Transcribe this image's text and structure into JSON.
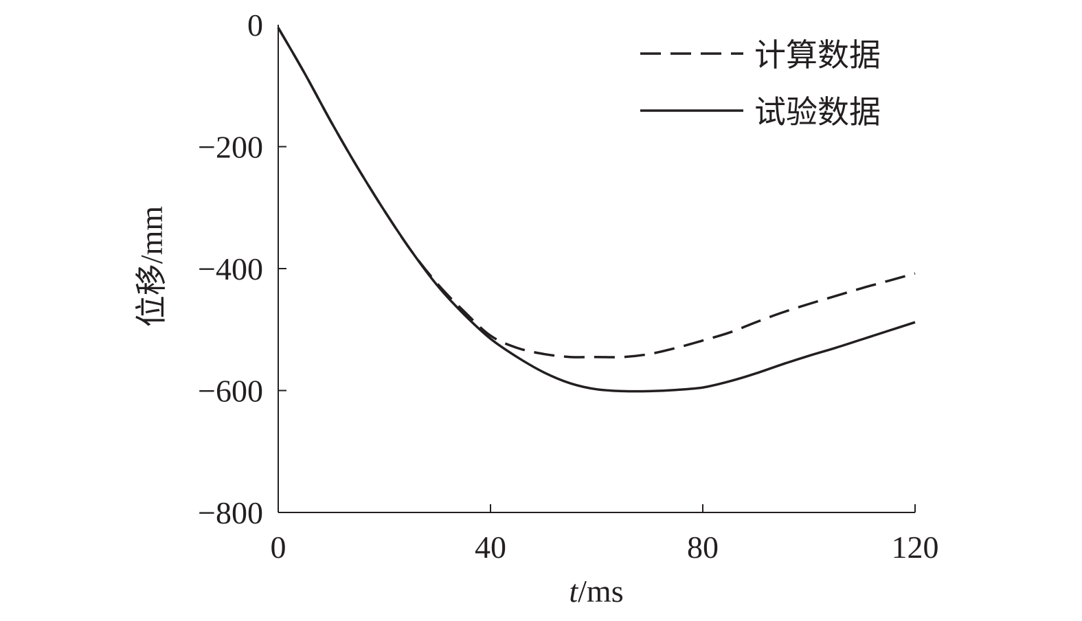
{
  "chart_data": {
    "type": "line",
    "xlabel_italic": "t",
    "xlabel_unit": "/ms",
    "ylabel": "位移/mm",
    "xlim": [
      0,
      120
    ],
    "ylim": [
      -800,
      0
    ],
    "xticks": [
      0,
      40,
      80,
      120
    ],
    "yticks": [
      0,
      -200,
      -400,
      -600,
      -800
    ],
    "x_tick_labels": [
      "0",
      "40",
      "80",
      "120"
    ],
    "y_tick_labels": [
      "0",
      "−200",
      "−400",
      "−600",
      "−800"
    ],
    "grid": false,
    "legend_position": "top-right",
    "series": [
      {
        "name": "计算数据",
        "style": "dashed",
        "color": "#231f20",
        "x": [
          0,
          5,
          10,
          15,
          20,
          25,
          30,
          35,
          40,
          45,
          50,
          55,
          60,
          65,
          70,
          75,
          80,
          85,
          90,
          95,
          100,
          105,
          110,
          115,
          120
        ],
        "y": [
          -5,
          -80,
          -160,
          -235,
          -305,
          -370,
          -425,
          -470,
          -510,
          -530,
          -540,
          -545,
          -545,
          -545,
          -540,
          -530,
          -518,
          -505,
          -488,
          -472,
          -458,
          -445,
          -432,
          -420,
          -408
        ]
      },
      {
        "name": "试验数据",
        "style": "solid",
        "color": "#231f20",
        "x": [
          0,
          5,
          10,
          15,
          20,
          25,
          30,
          35,
          40,
          45,
          50,
          55,
          60,
          65,
          70,
          75,
          80,
          85,
          90,
          95,
          100,
          105,
          110,
          115,
          120
        ],
        "y": [
          -5,
          -80,
          -160,
          -235,
          -305,
          -370,
          -428,
          -475,
          -515,
          -545,
          -570,
          -588,
          -598,
          -601,
          -601,
          -599,
          -595,
          -585,
          -572,
          -557,
          -543,
          -530,
          -516,
          -502,
          -488
        ]
      }
    ]
  }
}
